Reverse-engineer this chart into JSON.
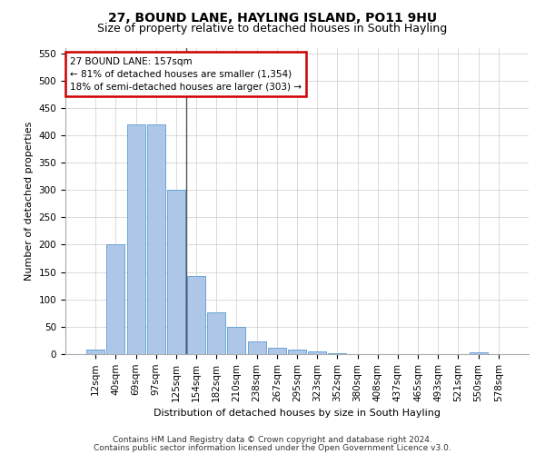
{
  "title1": "27, BOUND LANE, HAYLING ISLAND, PO11 9HU",
  "title2": "Size of property relative to detached houses in South Hayling",
  "xlabel": "Distribution of detached houses by size in South Hayling",
  "ylabel": "Number of detached properties",
  "categories": [
    "12sqm",
    "40sqm",
    "69sqm",
    "97sqm",
    "125sqm",
    "154sqm",
    "182sqm",
    "210sqm",
    "238sqm",
    "267sqm",
    "295sqm",
    "323sqm",
    "352sqm",
    "380sqm",
    "408sqm",
    "437sqm",
    "465sqm",
    "493sqm",
    "521sqm",
    "550sqm",
    "578sqm"
  ],
  "values": [
    8,
    200,
    420,
    420,
    300,
    143,
    77,
    49,
    23,
    11,
    8,
    5,
    1,
    0,
    0,
    0,
    0,
    0,
    0,
    3,
    0
  ],
  "bar_color": "#aec6e8",
  "bar_edge_color": "#5b9bd5",
  "highlight_line_color": "#555555",
  "annotation_text_line1": "27 BOUND LANE: 157sqm",
  "annotation_text_line2": "← 81% of detached houses are smaller (1,354)",
  "annotation_text_line3": "18% of semi-detached houses are larger (303) →",
  "annotation_box_color": "#ffffff",
  "annotation_box_edge_color": "#cc0000",
  "ylim": [
    0,
    560
  ],
  "yticks": [
    0,
    50,
    100,
    150,
    200,
    250,
    300,
    350,
    400,
    450,
    500,
    550
  ],
  "footnote1": "Contains HM Land Registry data © Crown copyright and database right 2024.",
  "footnote2": "Contains public sector information licensed under the Open Government Licence v3.0.",
  "bg_color": "#ffffff",
  "grid_color": "#cccccc",
  "title1_fontsize": 10,
  "title2_fontsize": 9,
  "xlabel_fontsize": 8,
  "ylabel_fontsize": 8,
  "tick_fontsize": 7.5,
  "footnote_fontsize": 6.5
}
